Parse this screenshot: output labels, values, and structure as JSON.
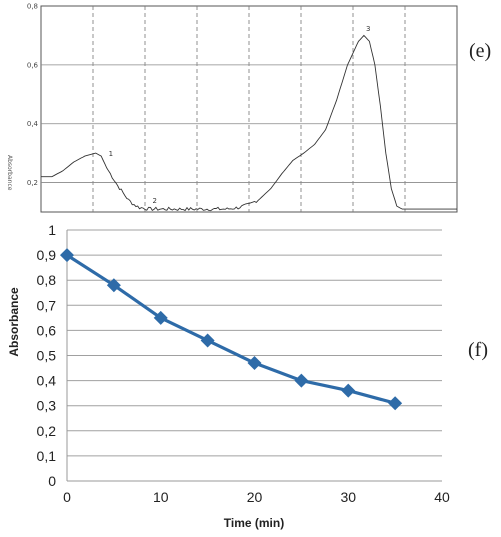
{
  "chart_data": [
    {
      "panel": "(e)",
      "type": "line",
      "ylabel": "Absorbance",
      "ylim": [
        0.1,
        0.8
      ],
      "yticks": [
        "0,2",
        "0,4",
        "0,6",
        "0,8"
      ],
      "grid": true,
      "peak_labels": [
        "1",
        "2",
        "3"
      ],
      "series": [
        {
          "values": [
            [
              0,
              0.22
            ],
            [
              2,
              0.22
            ],
            [
              4,
              0.24
            ],
            [
              6,
              0.27
            ],
            [
              8,
              0.29
            ],
            [
              10,
              0.3
            ],
            [
              11,
              0.29
            ],
            [
              12,
              0.25
            ],
            [
              13,
              0.22
            ],
            [
              14,
              0.19
            ],
            [
              15,
              0.165
            ],
            [
              16,
              0.14
            ],
            [
              17,
              0.125
            ],
            [
              18,
              0.115
            ],
            [
              20,
              0.11
            ],
            [
              25,
              0.11
            ],
            [
              30,
              0.11
            ],
            [
              34,
              0.11
            ],
            [
              36,
              0.115
            ],
            [
              38,
              0.125
            ],
            [
              40,
              0.145
            ],
            [
              42,
              0.18
            ],
            [
              44,
              0.23
            ],
            [
              46,
              0.275
            ],
            [
              48,
              0.3
            ],
            [
              50,
              0.33
            ],
            [
              52,
              0.38
            ],
            [
              54,
              0.48
            ],
            [
              56,
              0.6
            ],
            [
              58,
              0.68
            ],
            [
              59,
              0.7
            ],
            [
              60,
              0.68
            ],
            [
              61,
              0.6
            ],
            [
              62,
              0.46
            ],
            [
              63,
              0.3
            ],
            [
              64,
              0.18
            ],
            [
              65,
              0.12
            ],
            [
              66,
              0.11
            ],
            [
              70,
              0.11
            ],
            [
              76,
              0.11
            ]
          ]
        }
      ]
    },
    {
      "panel": "(f)",
      "type": "line",
      "xlabel": "Time (min)",
      "ylabel": "Absorbance",
      "xlim": [
        0,
        40
      ],
      "ylim": [
        0,
        1
      ],
      "xticks": [
        "0",
        "10",
        "20",
        "30",
        "40"
      ],
      "yticks": [
        "0",
        "0,1",
        "0,2",
        "0,3",
        "0,4",
        "0,5",
        "0,6",
        "0,7",
        "0,8",
        "0,9",
        "1"
      ],
      "grid": true,
      "series": [
        {
          "x": [
            0,
            5,
            10,
            15,
            20,
            25,
            30,
            35
          ],
          "values": [
            0.9,
            0.78,
            0.65,
            0.56,
            0.47,
            0.4,
            0.36,
            0.31
          ],
          "color": "#2e6ba8"
        }
      ]
    }
  ]
}
